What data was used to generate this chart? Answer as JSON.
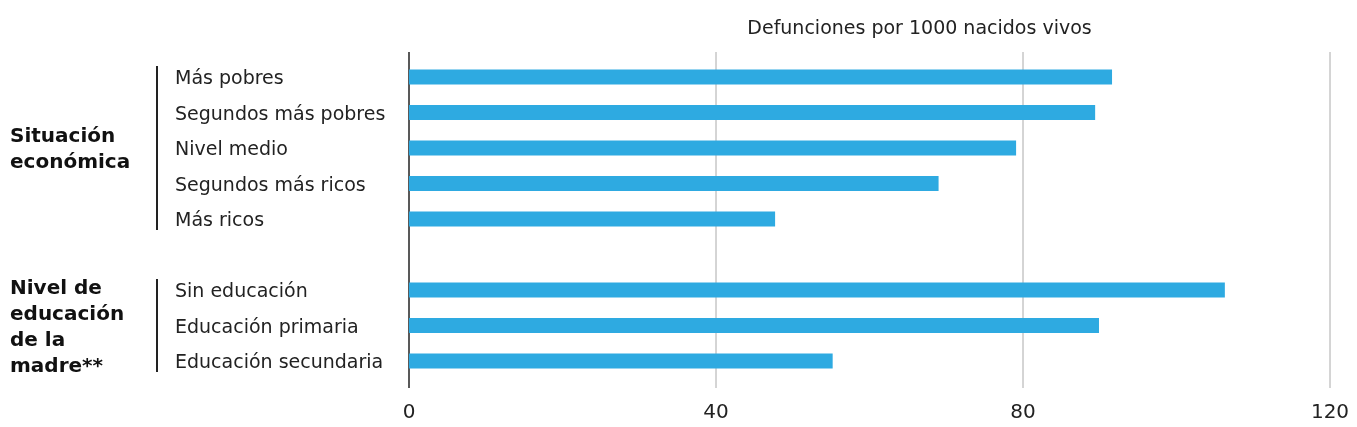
{
  "chart_data": {
    "type": "bar",
    "orientation": "horizontal",
    "xlabel": "Defunciones por 1000 nacidos vivos",
    "categories": [
      "Más pobres",
      "Segundos más pobres",
      "Nivel medio",
      "Segundos más ricos",
      "Más ricos",
      null,
      "Sin educación",
      "Educación primaria",
      "Educación secundaria"
    ],
    "values": [
      91.6,
      89.4,
      79.1,
      69,
      47.7,
      null,
      106.3,
      89.9,
      55.2
    ],
    "color": "#2eaae1",
    "xlim": [
      0,
      120
    ],
    "xticks": [
      0,
      40,
      80,
      120
    ],
    "grid": "x",
    "annotations": [
      "Situación económica",
      "Nivel de educación de la madre**"
    ]
  }
}
